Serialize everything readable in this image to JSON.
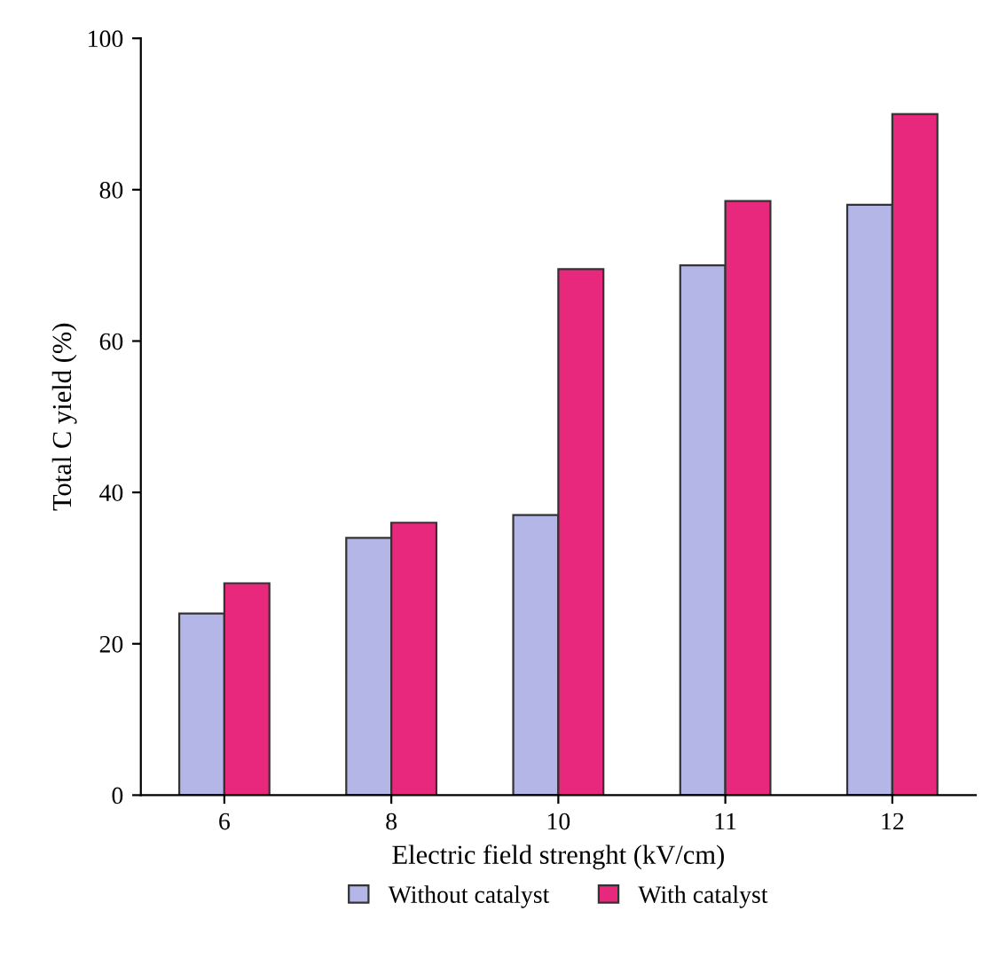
{
  "chart_data": {
    "type": "bar",
    "xlabel": "Electric field strenght (kV/cm)",
    "ylabel": "Total C yield (%)",
    "categories": [
      "6",
      "8",
      "10",
      "11",
      "12"
    ],
    "series": [
      {
        "name": "Without catalyst",
        "color": "#b4b6e8",
        "values": [
          24,
          34,
          37,
          70,
          78
        ]
      },
      {
        "name": "With catalyst",
        "color": "#e8287c",
        "values": [
          28,
          36,
          69.5,
          78.5,
          90
        ]
      }
    ],
    "ylim": [
      0,
      100
    ],
    "yticks": [
      0,
      20,
      40,
      60,
      80,
      100
    ],
    "grid": false,
    "legend": "bottom"
  }
}
